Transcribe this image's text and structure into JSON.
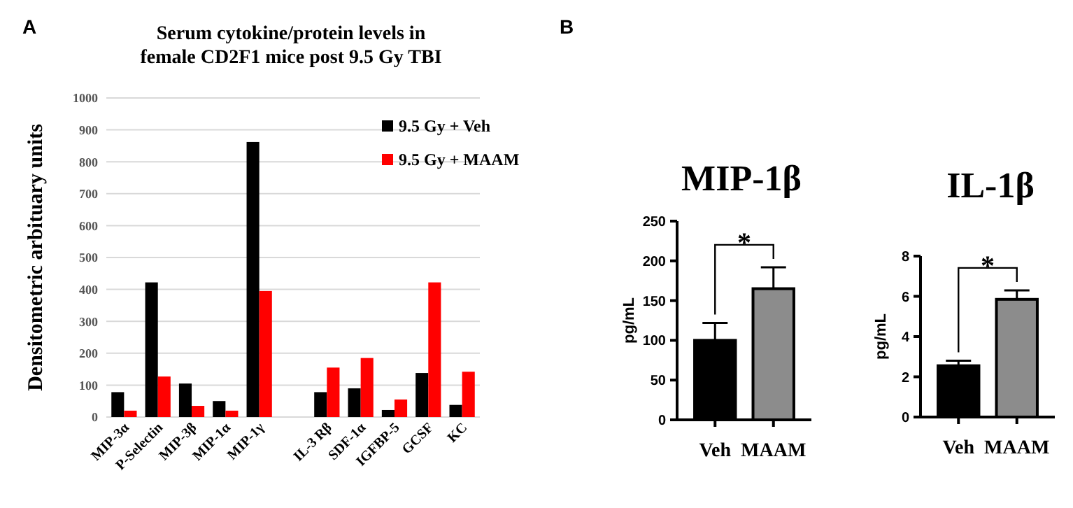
{
  "chart_data": [
    {
      "type": "bar",
      "title": "Serum cytokine/protein levels in\nfemale CD2F1 mice post 9.5 Gy TBI",
      "ylabel": "Densitometric arbituary units",
      "categories": [
        "MIP-3α",
        "P-Selectin",
        "MIP-3β",
        "MIP-1α",
        "MIP-1γ",
        null,
        "IL-3 Rβ",
        "SDF-1α",
        "IGFBP-5",
        "GCSF",
        "KC"
      ],
      "series": [
        {
          "name": "9.5 Gy + Veh",
          "color": "#000000",
          "values": [
            78,
            422,
            105,
            50,
            862,
            null,
            78,
            90,
            22,
            138,
            38
          ]
        },
        {
          "name": "9.5 Gy + MAAM",
          "color": "#ff0000",
          "values": [
            20,
            127,
            35,
            20,
            395,
            null,
            155,
            185,
            55,
            422,
            142
          ]
        }
      ],
      "ylim": [
        0,
        1000
      ],
      "yticks": [
        0,
        100,
        200,
        300,
        400,
        500,
        600,
        700,
        800,
        900,
        1000
      ],
      "grid": "y",
      "legend": "top right",
      "annotations": [
        "A"
      ]
    },
    {
      "type": "bar",
      "title": "MIP-1β",
      "ylabel": "pg/mL",
      "categories": [
        "Veh",
        "MAAM"
      ],
      "values": [
        100,
        165
      ],
      "colors": [
        "#000000",
        "#8c8c8c"
      ],
      "errors": [
        22,
        27
      ],
      "ylim": [
        0,
        250
      ],
      "yticks": [
        0,
        50,
        100,
        150,
        200,
        250
      ],
      "annotations": [
        "B",
        "*"
      ]
    },
    {
      "type": "bar",
      "title": "IL-1β",
      "ylabel": "pg/mL",
      "categories": [
        "Veh",
        "MAAM"
      ],
      "values": [
        2.55,
        5.85
      ],
      "colors": [
        "#000000",
        "#8c8c8c"
      ],
      "errors": [
        0.25,
        0.45
      ],
      "ylim": [
        0,
        8
      ],
      "yticks": [
        0,
        2,
        4,
        6,
        8
      ],
      "annotations": [
        "*"
      ]
    }
  ]
}
